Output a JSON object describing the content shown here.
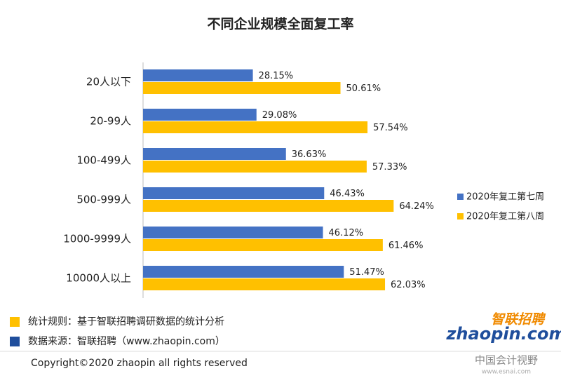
{
  "chart_data": {
    "type": "hbar",
    "title": "不同企业规模全面复工率",
    "categories": [
      "20人以下",
      "20-99人",
      "100-499人",
      "500-999人",
      "1000-9999人",
      "10000人以上"
    ],
    "series": [
      {
        "name": "2020年复工第七周",
        "color": "#4472c4",
        "values": [
          28.15,
          29.08,
          36.63,
          46.43,
          46.12,
          51.47
        ],
        "value_labels": [
          "28.15%",
          "29.08%",
          "36.63%",
          "46.43%",
          "46.12%",
          "51.47%"
        ]
      },
      {
        "name": "2020年复工第八周",
        "color": "#ffc000",
        "values": [
          50.61,
          57.54,
          57.33,
          64.24,
          61.46,
          62.03
        ],
        "value_labels": [
          "50.61%",
          "57.54%",
          "57.33%",
          "64.24%",
          "61.46%",
          "62.03%"
        ]
      }
    ],
    "xlim": [
      0,
      80
    ],
    "legend": "right"
  },
  "notes": [
    {
      "text": "统计规则：基于智联招聘调研数据的统计分析",
      "color": "#ffc000"
    },
    {
      "text": "数据来源：智联招聘（www.zhaopin.com）",
      "color": "#1f4e9c"
    }
  ],
  "copyright": "Copyright©2020 zhaopin all rights reserved",
  "logo": {
    "name": "智联招聘",
    "url": "zhaopin.com"
  },
  "watermark": {
    "name": "中国会计视野",
    "url": "www.esnai.com"
  }
}
